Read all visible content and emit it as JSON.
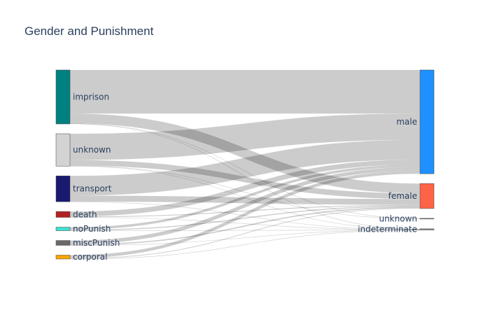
{
  "chart_data": {
    "type": "sankey",
    "title": "Gender and Punishment",
    "sources": [
      {
        "name": "imprison",
        "color": "#008080"
      },
      {
        "name": "unknown",
        "color": "#d3d3d3"
      },
      {
        "name": "transport",
        "color": "#191970"
      },
      {
        "name": "death",
        "color": "#b22222"
      },
      {
        "name": "noPunish",
        "color": "#40e0d0"
      },
      {
        "name": "miscPunish",
        "color": "#696969"
      },
      {
        "name": "corporal",
        "color": "#ffa500"
      }
    ],
    "targets": [
      {
        "name": "male",
        "color": "#1e90ff"
      },
      {
        "name": "female",
        "color": "#ff6347"
      },
      {
        "name": "unknown",
        "color": "#888888"
      },
      {
        "name": "indeterminate",
        "color": "#888888"
      }
    ],
    "links": [
      {
        "source": "imprison",
        "target": "male",
        "value": 2650
      },
      {
        "source": "imprison",
        "target": "female",
        "value": 600
      },
      {
        "source": "imprison",
        "target": "unknown",
        "value": 10
      },
      {
        "source": "imprison",
        "target": "indeterminate",
        "value": 20
      },
      {
        "source": "unknown",
        "target": "male",
        "value": 1600
      },
      {
        "source": "unknown",
        "target": "female",
        "value": 340
      },
      {
        "source": "unknown",
        "target": "unknown",
        "value": 10
      },
      {
        "source": "unknown",
        "target": "indeterminate",
        "value": 20
      },
      {
        "source": "transport",
        "target": "male",
        "value": 1200
      },
      {
        "source": "transport",
        "target": "female",
        "value": 360
      },
      {
        "source": "transport",
        "target": "indeterminate",
        "value": 10
      },
      {
        "source": "death",
        "target": "male",
        "value": 300
      },
      {
        "source": "death",
        "target": "female",
        "value": 50
      },
      {
        "source": "death",
        "target": "indeterminate",
        "value": 5
      },
      {
        "source": "noPunish",
        "target": "male",
        "value": 150
      },
      {
        "source": "noPunish",
        "target": "female",
        "value": 60
      },
      {
        "source": "noPunish",
        "target": "indeterminate",
        "value": 5
      },
      {
        "source": "miscPunish",
        "target": "male",
        "value": 220
      },
      {
        "source": "miscPunish",
        "target": "female",
        "value": 70
      },
      {
        "source": "miscPunish",
        "target": "indeterminate",
        "value": 5
      },
      {
        "source": "corporal",
        "target": "male",
        "value": 190
      },
      {
        "source": "corporal",
        "target": "female",
        "value": 40
      },
      {
        "source": "corporal",
        "target": "indeterminate",
        "value": 5
      }
    ],
    "link_color": "#000000",
    "link_opacity": 0.2,
    "label_color": "#2a3f5f"
  }
}
